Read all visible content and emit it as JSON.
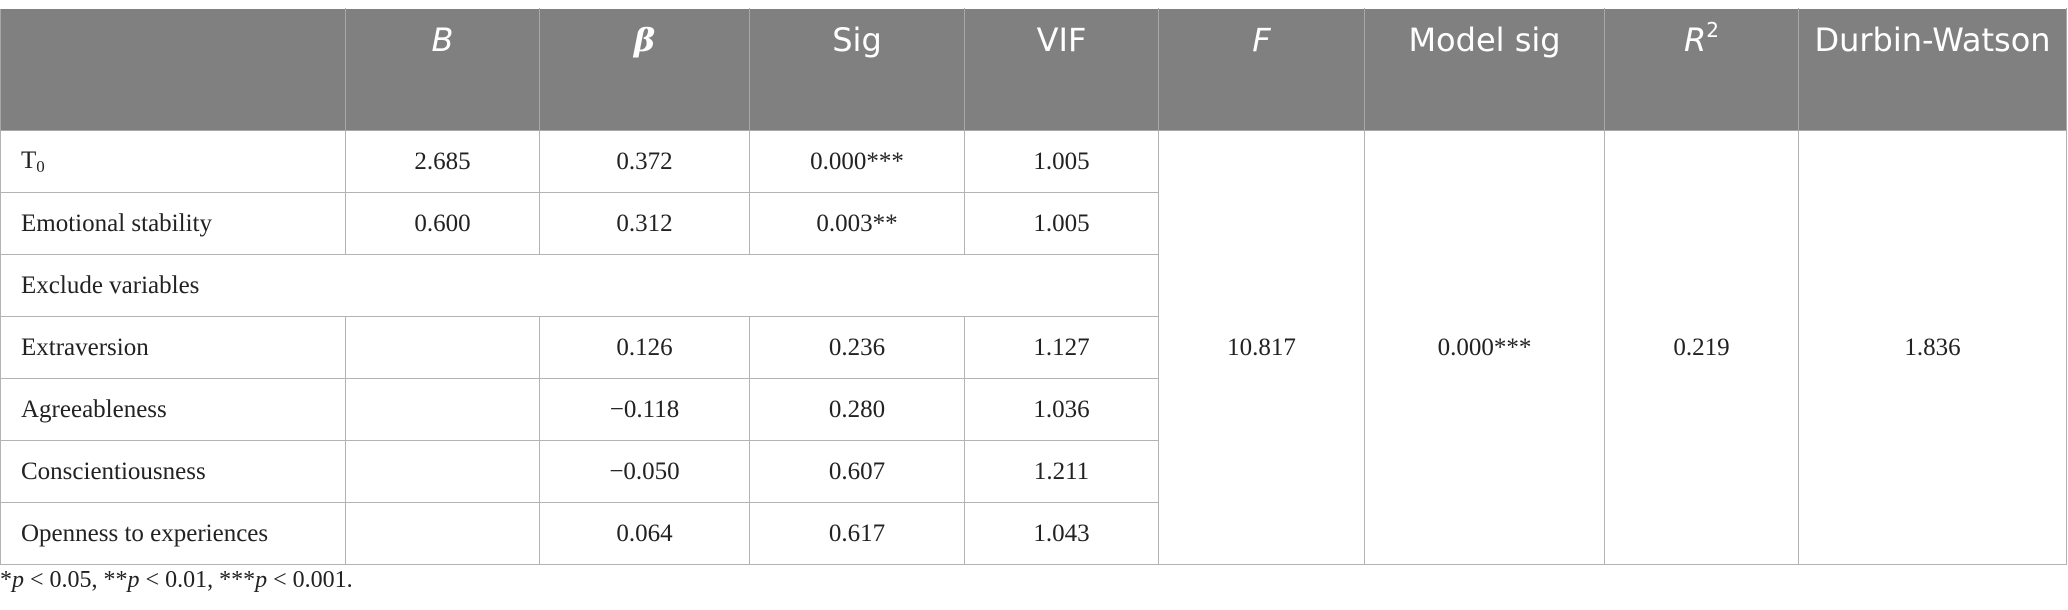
{
  "headers": {
    "b": "B",
    "beta": "β",
    "sig": "Sig",
    "vif": "VIF",
    "f": "F",
    "model_sig": "Model sig",
    "r_base": "R",
    "r_sup": "2",
    "dw": "Durbin-Watson"
  },
  "rows": {
    "t0": {
      "label_base": "T",
      "label_sub": "0",
      "b": "2.685",
      "beta": "0.372",
      "sig": "0.000***",
      "vif": "1.005"
    },
    "emotional_stability": {
      "label": "Emotional stability",
      "b": "0.600",
      "beta": "0.312",
      "sig": "0.003**",
      "vif": "1.005"
    },
    "exclude_header": {
      "label": "Exclude variables"
    },
    "extraversion": {
      "label": "Extraversion",
      "b": "",
      "beta": "0.126",
      "sig": "0.236",
      "vif": "1.127"
    },
    "agreeableness": {
      "label": "Agreeableness",
      "b": "",
      "beta": "−0.118",
      "sig": "0.280",
      "vif": "1.036"
    },
    "conscientiousness": {
      "label": "Conscientiousness",
      "b": "",
      "beta": "−0.050",
      "sig": "0.607",
      "vif": "1.211"
    },
    "openness": {
      "label": "Openness to experiences",
      "b": "",
      "beta": "0.064",
      "sig": "0.617",
      "vif": "1.043"
    }
  },
  "model": {
    "f": "10.817",
    "model_sig": "0.000***",
    "r2": "0.219",
    "dw": "1.836"
  },
  "footnote": {
    "s1": "*",
    "p1": "p",
    "t1": " < 0.05, **",
    "p2": "p",
    "t2": " < 0.01, ***",
    "p3": "p",
    "t3": " < 0.001."
  }
}
